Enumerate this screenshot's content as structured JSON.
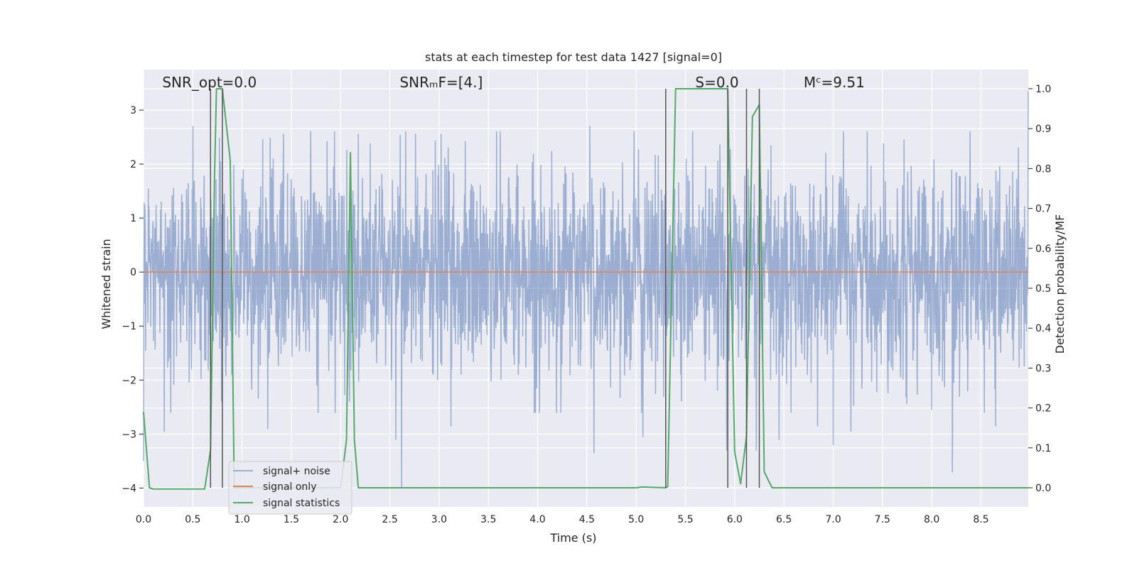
{
  "chart_data": {
    "type": "line",
    "title": "stats at each timestep for test data 1427 [signal=0]",
    "xlabel": "Time (s)",
    "ylabel": "Whitened strain",
    "y2label": "Detection probability/MF",
    "xlim": [
      0.0,
      8.98
    ],
    "ylim": [
      -4.35,
      3.75
    ],
    "y2lim": [
      -0.048,
      1.048
    ],
    "xticks": [
      0.0,
      0.5,
      1.0,
      1.5,
      2.0,
      2.5,
      3.0,
      3.5,
      4.0,
      4.5,
      5.0,
      5.5,
      6.0,
      6.5,
      7.0,
      7.5,
      8.0,
      8.5
    ],
    "xtick_labels": [
      "0.0",
      "0.5",
      "1.0",
      "1.5",
      "2.0",
      "2.5",
      "3.0",
      "3.5",
      "4.0",
      "4.5",
      "5.0",
      "5.5",
      "6.0",
      "6.5",
      "7.0",
      "7.5",
      "8.0",
      "8.5"
    ],
    "yticks": [
      3,
      2,
      1,
      0,
      -1,
      -2,
      -3,
      -4
    ],
    "ytick_labels": [
      "3",
      "2",
      "1",
      "0",
      "−1",
      "−2",
      "−3",
      "−4"
    ],
    "y2ticks": [
      1.0,
      0.9,
      0.8,
      0.7,
      0.6,
      0.5,
      0.4,
      0.3,
      0.2,
      0.1,
      0.0
    ],
    "y2tick_labels": [
      "1.0",
      "0.9",
      "0.8",
      "0.7",
      "0.6",
      "0.5",
      "0.4",
      "0.3",
      "0.2",
      "0.1",
      "0.0"
    ],
    "grid": true,
    "legend_position": "lower-left",
    "annotations": [
      {
        "id": "snr-opt",
        "text": "SNR_opt=0.0",
        "x": 0.19
      },
      {
        "id": "snr-mf",
        "text": "SNRₘF=[4.]",
        "x": 2.6
      },
      {
        "id": "s-stat",
        "text": "S=0.0",
        "x": 5.6
      },
      {
        "id": "chirp-mass",
        "text": "Mᶜ=9.51",
        "x": 6.7
      }
    ],
    "series": [
      {
        "name": "signal+ noise",
        "color": "#4c72b0",
        "opacity": 0.5,
        "description": "whitened noise, approx. gaussian, 0 to 8.98 s",
        "std": 0.95,
        "spikes": [
          [
            0.0,
            -3.5
          ],
          [
            0.21,
            -2.95
          ],
          [
            0.5,
            2.7
          ],
          [
            0.79,
            -2.35
          ],
          [
            1.26,
            -2.9
          ],
          [
            1.42,
            2.55
          ],
          [
            2.18,
            2.55
          ],
          [
            2.56,
            -3.1
          ],
          [
            2.62,
            -4.0
          ],
          [
            3.02,
            2.55
          ],
          [
            3.12,
            -2.85
          ],
          [
            3.62,
            2.6
          ],
          [
            4.53,
            2.7
          ],
          [
            4.57,
            -3.35
          ],
          [
            4.98,
            2.6
          ],
          [
            5.07,
            -3.05
          ],
          [
            5.92,
            -3.3
          ],
          [
            6.22,
            -3.3
          ],
          [
            6.45,
            -3.1
          ],
          [
            6.84,
            -2.85
          ],
          [
            7.0,
            -3.2
          ],
          [
            7.18,
            -2.95
          ],
          [
            7.72,
            2.45
          ],
          [
            8.21,
            -3.7
          ],
          [
            8.65,
            -2.85
          ],
          [
            8.88,
            2.3
          ],
          [
            8.98,
            3.35
          ]
        ]
      },
      {
        "name": "signal only",
        "color": "#dd8452",
        "x": [
          0.0,
          8.98
        ],
        "y": [
          0.0,
          0.0
        ]
      },
      {
        "name": "signal statistics",
        "color": "#55a868",
        "axis": "right",
        "x": [
          0.0,
          0.06,
          0.1,
          0.62,
          0.68,
          0.72,
          0.74,
          0.8,
          0.88,
          0.92,
          1.0,
          2.0,
          2.06,
          2.1,
          2.14,
          2.18,
          2.22,
          5.0,
          5.06,
          5.3,
          5.32,
          5.4,
          5.93,
          6.0,
          6.06,
          6.12,
          6.18,
          6.25,
          6.3,
          6.38,
          8.98
        ],
        "y": [
          0.19,
          0.0,
          -0.003,
          -0.003,
          0.095,
          0.77,
          1.0,
          1.0,
          0.82,
          0.0,
          0.0,
          0.0,
          0.12,
          0.84,
          0.12,
          0.0,
          0.0,
          0.0,
          0.002,
          0.0,
          0.003,
          1.0,
          1.0,
          0.09,
          0.01,
          0.13,
          0.93,
          0.96,
          0.04,
          0.0,
          0.0
        ]
      }
    ],
    "vertical_lines": {
      "color": "#555555",
      "x": [
        0.68,
        0.8,
        5.3,
        5.93,
        6.12,
        6.25
      ]
    }
  }
}
